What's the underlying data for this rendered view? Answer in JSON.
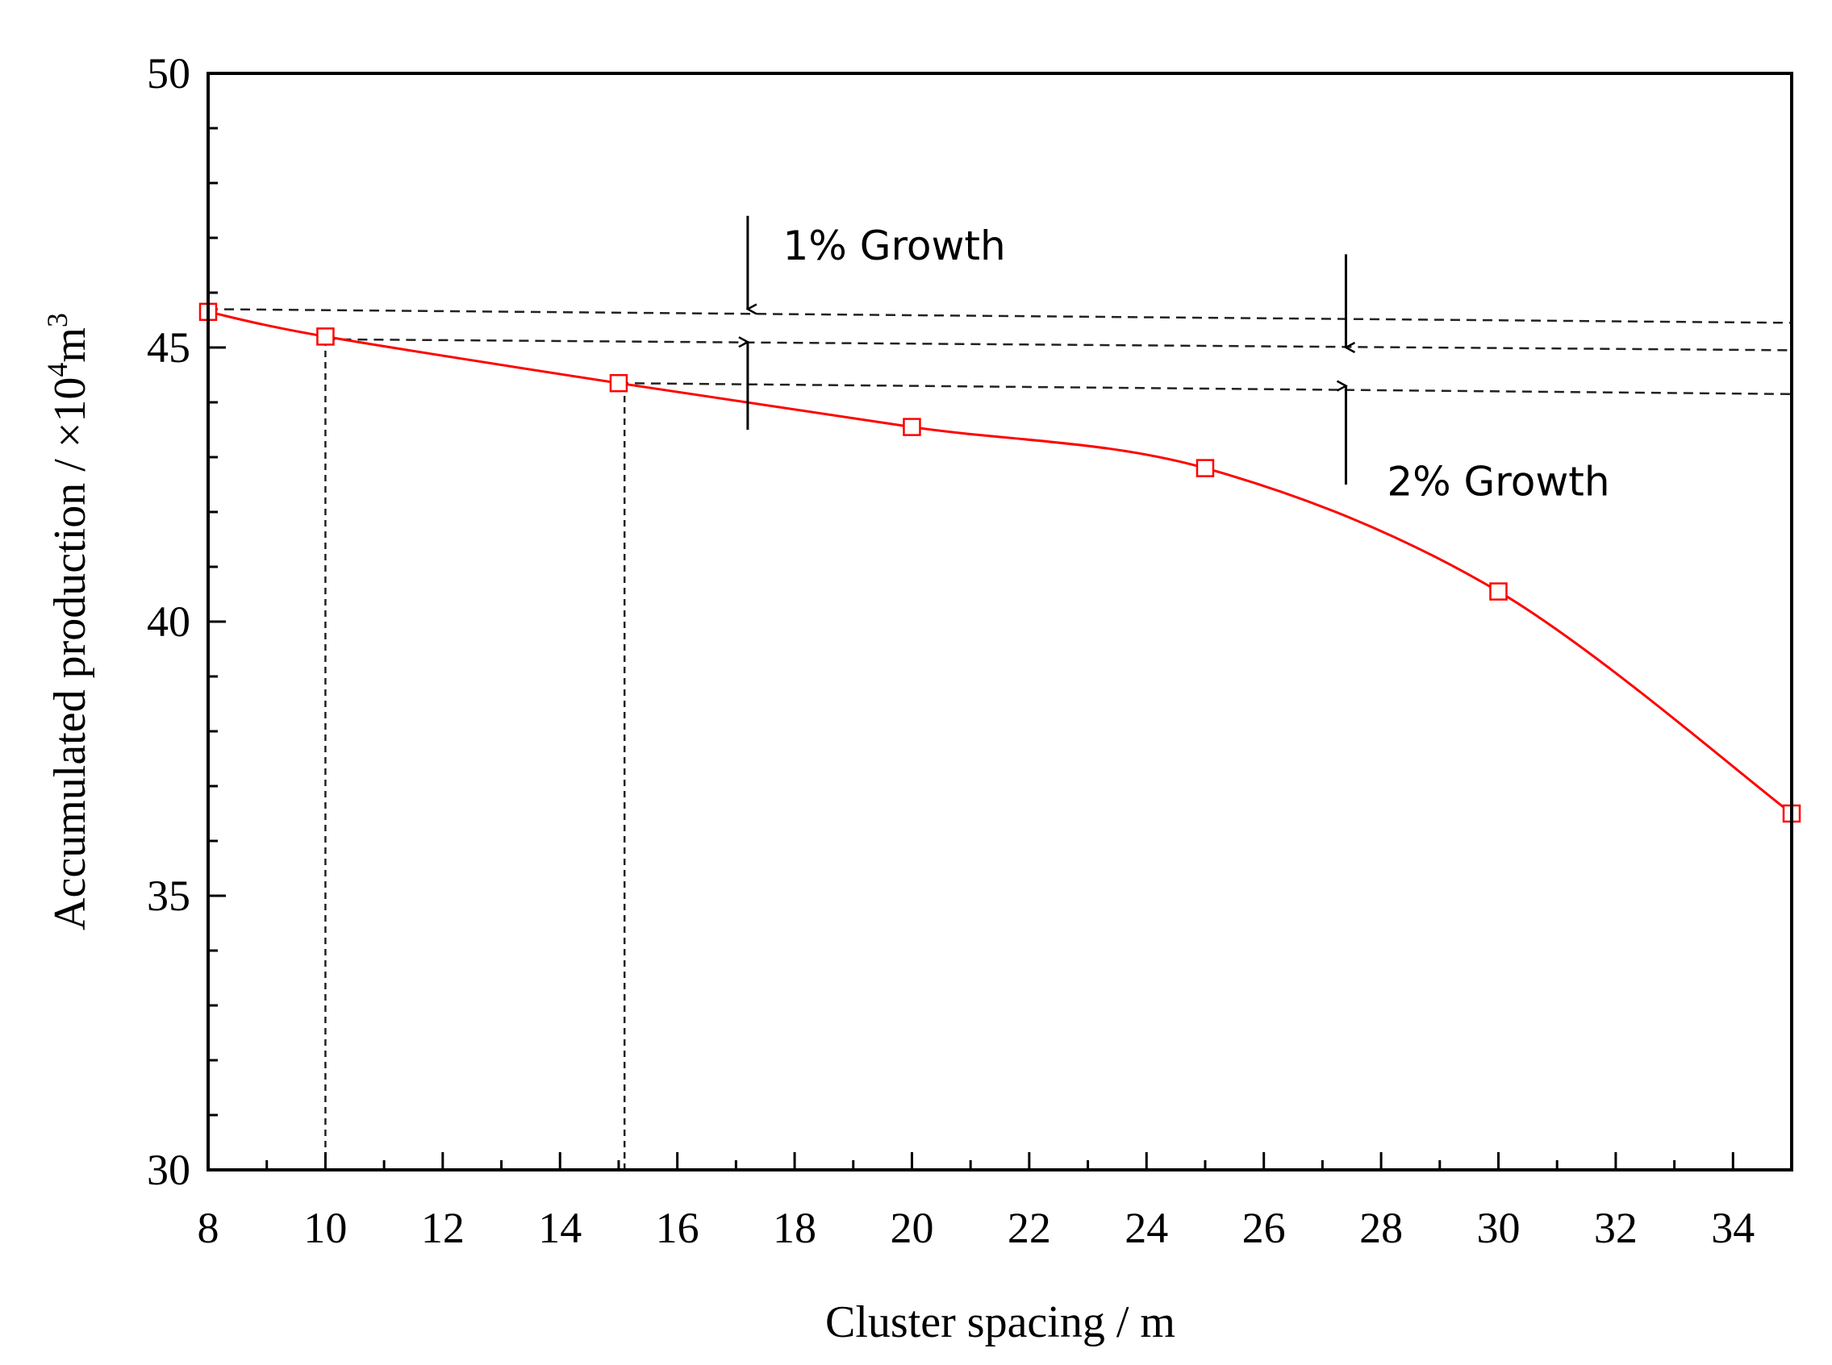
{
  "chart_data": {
    "type": "line",
    "title": "",
    "xlabel": "Cluster spacing / m",
    "ylabel_main": "Accumulated production / ×10",
    "ylabel_exp": "4",
    "ylabel_unit": "m",
    "ylabel_unit_exp": "3",
    "xlim": [
      8,
      35
    ],
    "ylim": [
      30,
      50
    ],
    "x_major_ticks": [
      8,
      10,
      12,
      14,
      16,
      18,
      20,
      22,
      24,
      26,
      28,
      30,
      32,
      34
    ],
    "y_major_ticks": [
      30,
      35,
      40,
      45,
      50
    ],
    "y_minor_step": 1,
    "grid": false,
    "series": [
      {
        "name": "Accumulated production",
        "color": "#ff0000",
        "marker": "open-square",
        "x": [
          8,
          10,
          15,
          20,
          25,
          30,
          35
        ],
        "values": [
          45.65,
          45.2,
          44.35,
          43.55,
          42.8,
          40.55,
          36.5
        ]
      }
    ],
    "reference_lines": {
      "horizontal_dashed": [
        {
          "x_from": 8,
          "x_to": 35,
          "y_start": 45.7,
          "y_end": 45.45
        },
        {
          "x_from": 10,
          "x_to": 35,
          "y_start": 45.15,
          "y_end": 44.95
        },
        {
          "x_from": 15,
          "x_to": 35,
          "y_start": 44.35,
          "y_end": 44.15
        }
      ],
      "vertical_dashed": [
        {
          "x": 10,
          "y_from": 30,
          "y_to": 45.2
        },
        {
          "x": 15.1,
          "y_from": 30,
          "y_to": 44.35
        }
      ]
    },
    "annotations": [
      {
        "text": "1% Growth",
        "x": 17.8,
        "y": 46.6
      },
      {
        "text": "2% Growth",
        "x": 28.1,
        "y": 42.3
      }
    ],
    "arrows": [
      {
        "x": 17.2,
        "y_from": 47.4,
        "y_to": 45.7
      },
      {
        "x": 17.2,
        "y_from": 43.5,
        "y_to": 45.1
      },
      {
        "x": 27.4,
        "y_from": 46.7,
        "y_to": 45.0
      },
      {
        "x": 27.4,
        "y_from": 42.5,
        "y_to": 44.3
      }
    ]
  }
}
